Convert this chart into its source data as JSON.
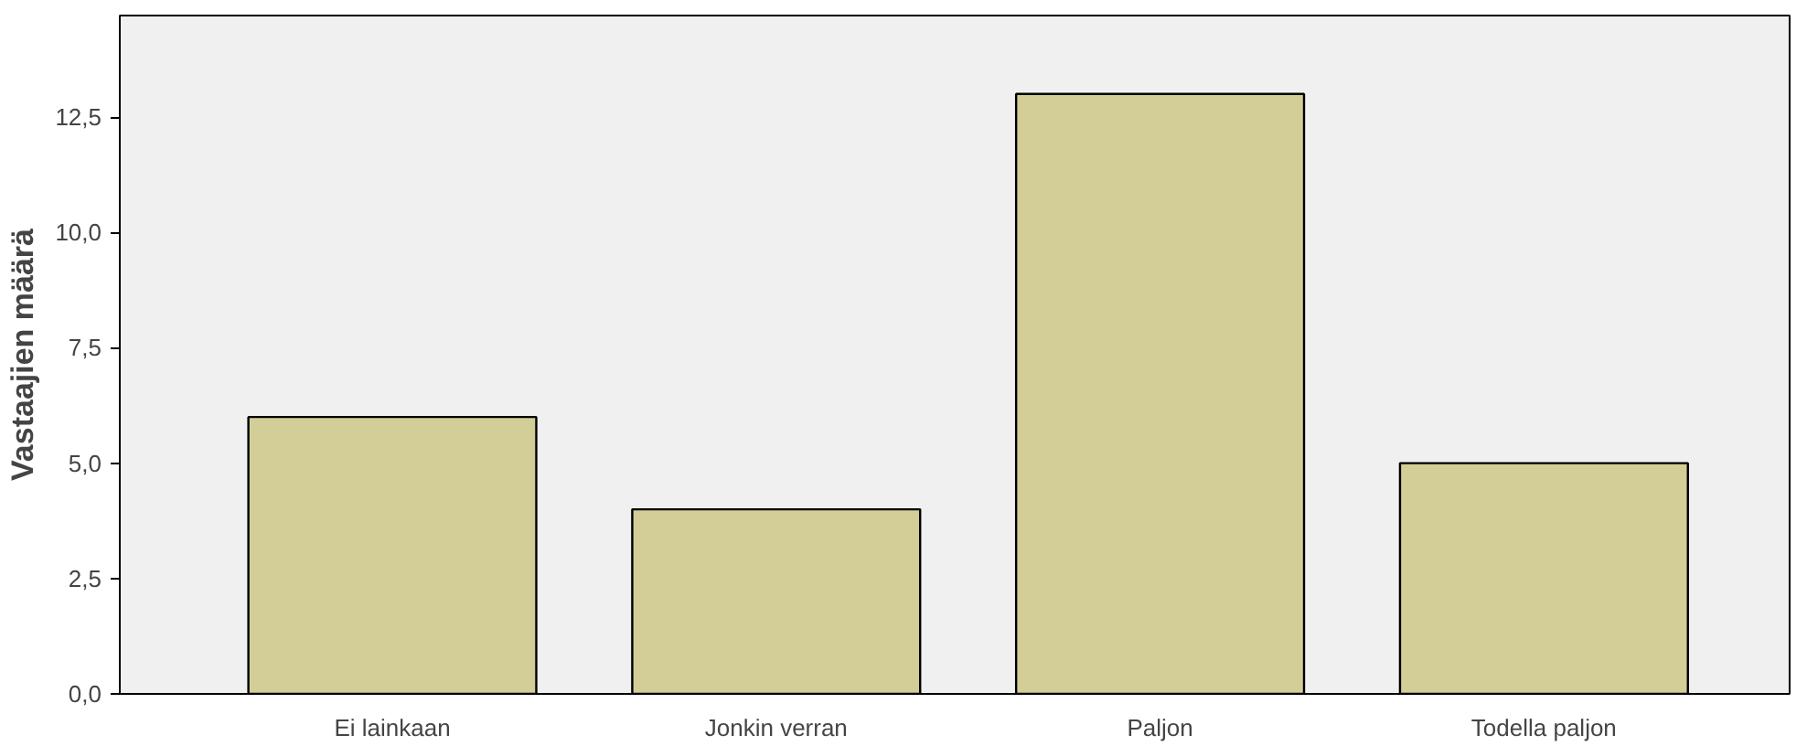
{
  "chart_data": {
    "type": "bar",
    "ylabel": "Vastaajien määrä",
    "categories": [
      "Ei lainkaan",
      "Jonkin verran",
      "Paljon",
      "Todella paljon"
    ],
    "values": [
      6,
      4,
      13,
      5
    ],
    "color": "#d3ce97",
    "ylim": [
      0,
      14.7
    ],
    "yticks": [
      {
        "value": 0,
        "label": "0,0"
      },
      {
        "value": 2.5,
        "label": "2,5"
      },
      {
        "value": 5,
        "label": "5,0"
      },
      {
        "value": 7.5,
        "label": "7,5"
      },
      {
        "value": 10,
        "label": "10,0"
      },
      {
        "value": 12.5,
        "label": "12,5"
      }
    ],
    "grid": false
  }
}
